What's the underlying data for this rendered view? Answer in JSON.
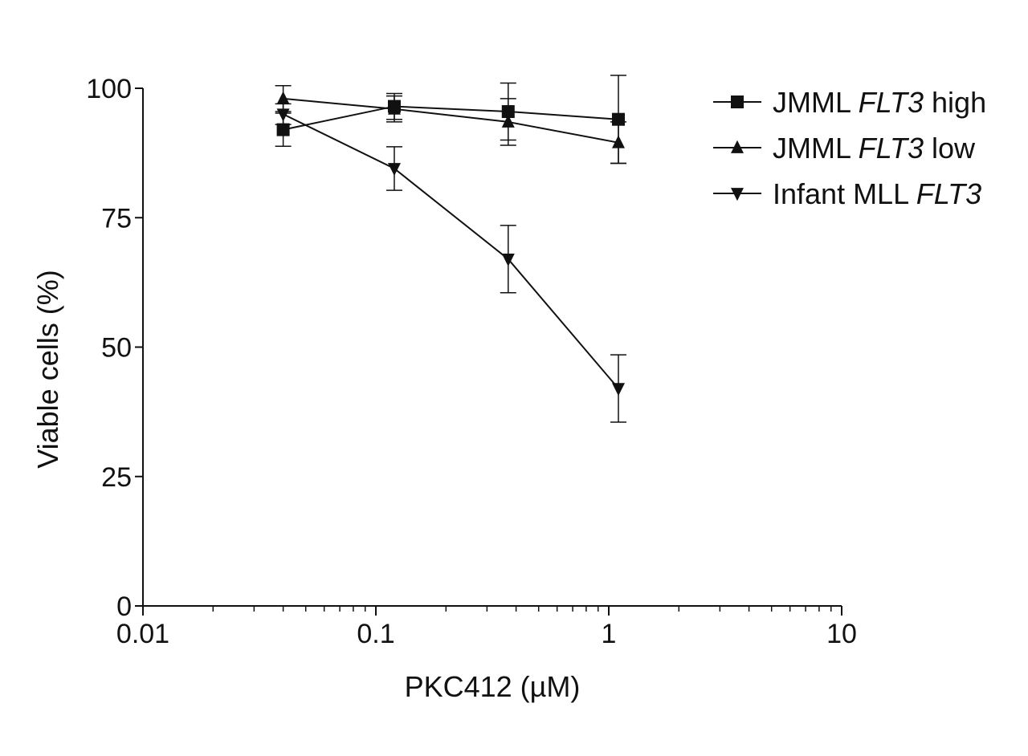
{
  "chart_data": {
    "type": "line",
    "xlabel": "PKC412 (µM)",
    "ylabel": "Viable cells (%)",
    "x_scale": "log",
    "xlim": [
      0.01,
      10
    ],
    "ylim": [
      0,
      100
    ],
    "x_ticks": [
      0.01,
      0.1,
      1,
      10
    ],
    "x_tick_labels": [
      "0.01",
      "0.1",
      "1",
      "10"
    ],
    "y_ticks": [
      0,
      25,
      50,
      75,
      100
    ],
    "y_tick_labels": [
      "0",
      "25",
      "50",
      "75",
      "100"
    ],
    "grid": false,
    "legend_position": "top-right",
    "series": [
      {
        "name": "JMML FLT3 high",
        "name_plain": "JMML ",
        "name_italic": "FLT3",
        "name_tail": " high",
        "marker": "square",
        "x": [
          0.04,
          0.12,
          0.37,
          1.1
        ],
        "y": [
          92,
          96.5,
          95.5,
          94
        ],
        "err": [
          3.2,
          2.5,
          5.5,
          8.5
        ]
      },
      {
        "name": "JMML FLT3 low",
        "name_plain": "JMML ",
        "name_italic": "FLT3",
        "name_tail": " low",
        "marker": "triangle-up",
        "x": [
          0.04,
          0.12,
          0.37,
          1.1
        ],
        "y": [
          98,
          96,
          93.5,
          89.5
        ],
        "err": [
          2.5,
          2.5,
          4.5,
          4
        ]
      },
      {
        "name": "Infant MLL FLT3",
        "name_plain": "Infant MLL ",
        "name_italic": "FLT3",
        "name_tail": "",
        "marker": "triangle-down",
        "x": [
          0.04,
          0.12,
          0.37,
          1.1
        ],
        "y": [
          95,
          84.5,
          67,
          42
        ],
        "err": [
          2,
          4.2,
          6.5,
          6.5
        ]
      }
    ]
  }
}
